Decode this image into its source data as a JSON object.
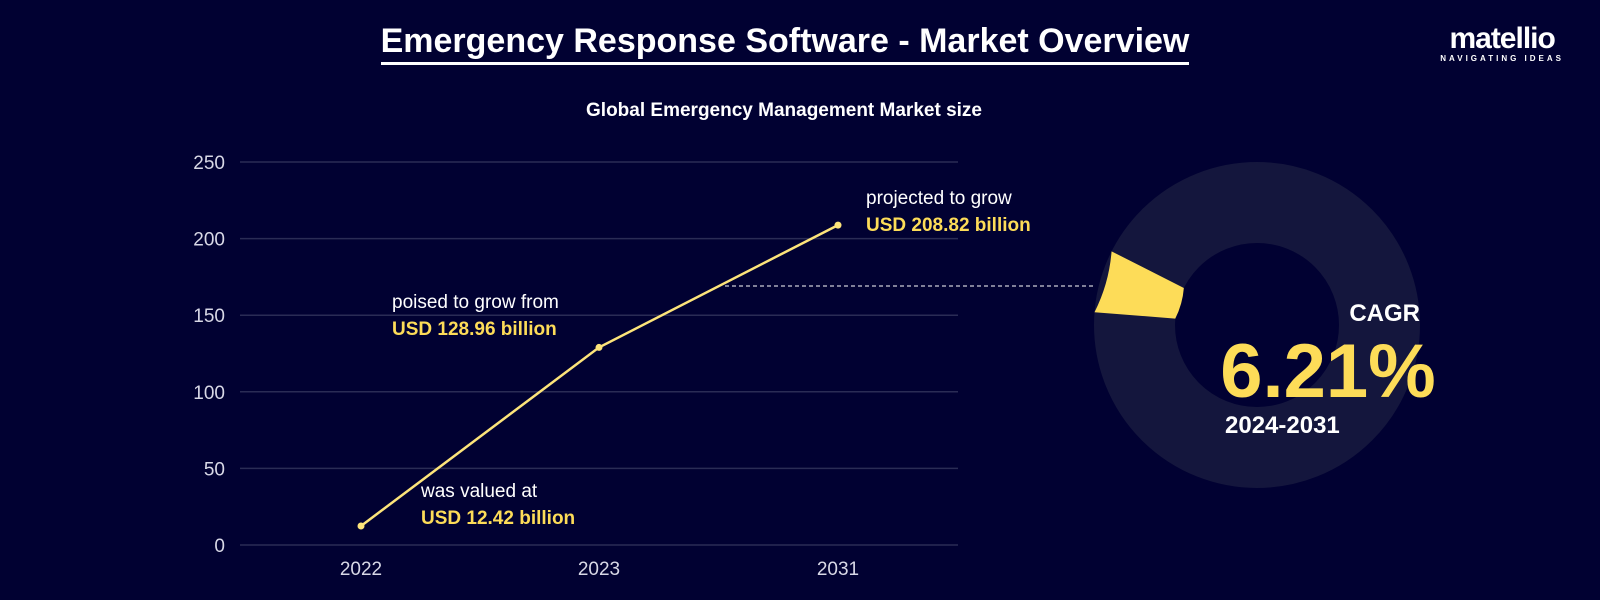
{
  "title": "Emergency Response Software - Market Overview",
  "logo": {
    "name": "matellio",
    "tagline": "NAVIGATING IDEAS"
  },
  "colors": {
    "background": "#010132",
    "line": "#fde47a",
    "accent": "#fddc58",
    "ring": "#14163d",
    "grid": "#2a2c55"
  },
  "chart_data": {
    "type": "line",
    "title": "Global Emergency Management Market size",
    "categories": [
      "2022",
      "2023",
      "2031"
    ],
    "values": [
      12.42,
      128.96,
      208.82
    ],
    "ylim": [
      0,
      250
    ],
    "yticks": [
      0,
      50,
      100,
      150,
      200,
      250
    ],
    "grid": true,
    "annotations": [
      {
        "text": "was valued at",
        "value": "USD 12.42 billion"
      },
      {
        "text": "poised to grow from",
        "value": "USD 128.96 billion"
      },
      {
        "text": "projected to grow",
        "value": "USD 208.82 billion"
      }
    ]
  },
  "cagr": {
    "label": "CAGR",
    "value": "6.21%",
    "percent": 6.21,
    "period": "2024-2031"
  }
}
